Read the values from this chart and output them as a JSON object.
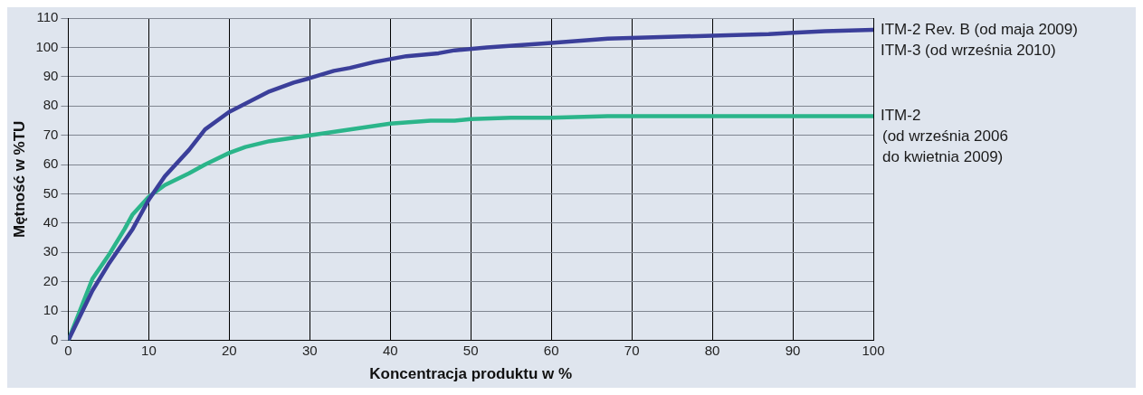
{
  "chart_data": {
    "type": "line",
    "xlabel": "Koncentracja produktu w %",
    "ylabel": "Mętność w %TU",
    "xlim": [
      0,
      100
    ],
    "ylim": [
      0,
      110
    ],
    "xticks": [
      0,
      10,
      20,
      30,
      40,
      50,
      60,
      70,
      80,
      90,
      100
    ],
    "yticks": [
      0,
      10,
      20,
      30,
      40,
      50,
      60,
      70,
      80,
      90,
      100,
      110
    ],
    "grid": true,
    "legend": false,
    "marker": "none",
    "line_style": "solid",
    "series": [
      {
        "name": "ITM-2 Rev. B (od maja 2009)\nITM-3 (od września 2010)",
        "color": "#3b3f9a",
        "x": [
          0,
          3,
          5,
          8,
          10,
          12,
          15,
          17,
          20,
          25,
          28,
          30,
          33,
          35,
          38,
          42,
          46,
          48,
          52,
          60,
          67,
          80,
          87,
          90,
          94,
          100
        ],
        "values": [
          0,
          17,
          26,
          38,
          48,
          56,
          65,
          72,
          78,
          85,
          88,
          89.5,
          92,
          93,
          95,
          97,
          98,
          99,
          100,
          101.5,
          103,
          104,
          104.5,
          105,
          105.5,
          106
        ]
      },
      {
        "name": "ITM-2\n(od września 2006\ndo kwietnia 2009)",
        "color": "#2bb58a",
        "x": [
          0,
          3,
          5,
          7,
          8,
          10,
          12,
          15,
          17,
          20,
          22,
          25,
          30,
          35,
          40,
          45,
          48,
          50,
          55,
          60,
          67,
          100
        ],
        "values": [
          0,
          21,
          29,
          38,
          43,
          49,
          53,
          57,
          60,
          64,
          66,
          68,
          70,
          72,
          74,
          75,
          75,
          75.5,
          76,
          76,
          76.5,
          76.5
        ]
      }
    ]
  }
}
